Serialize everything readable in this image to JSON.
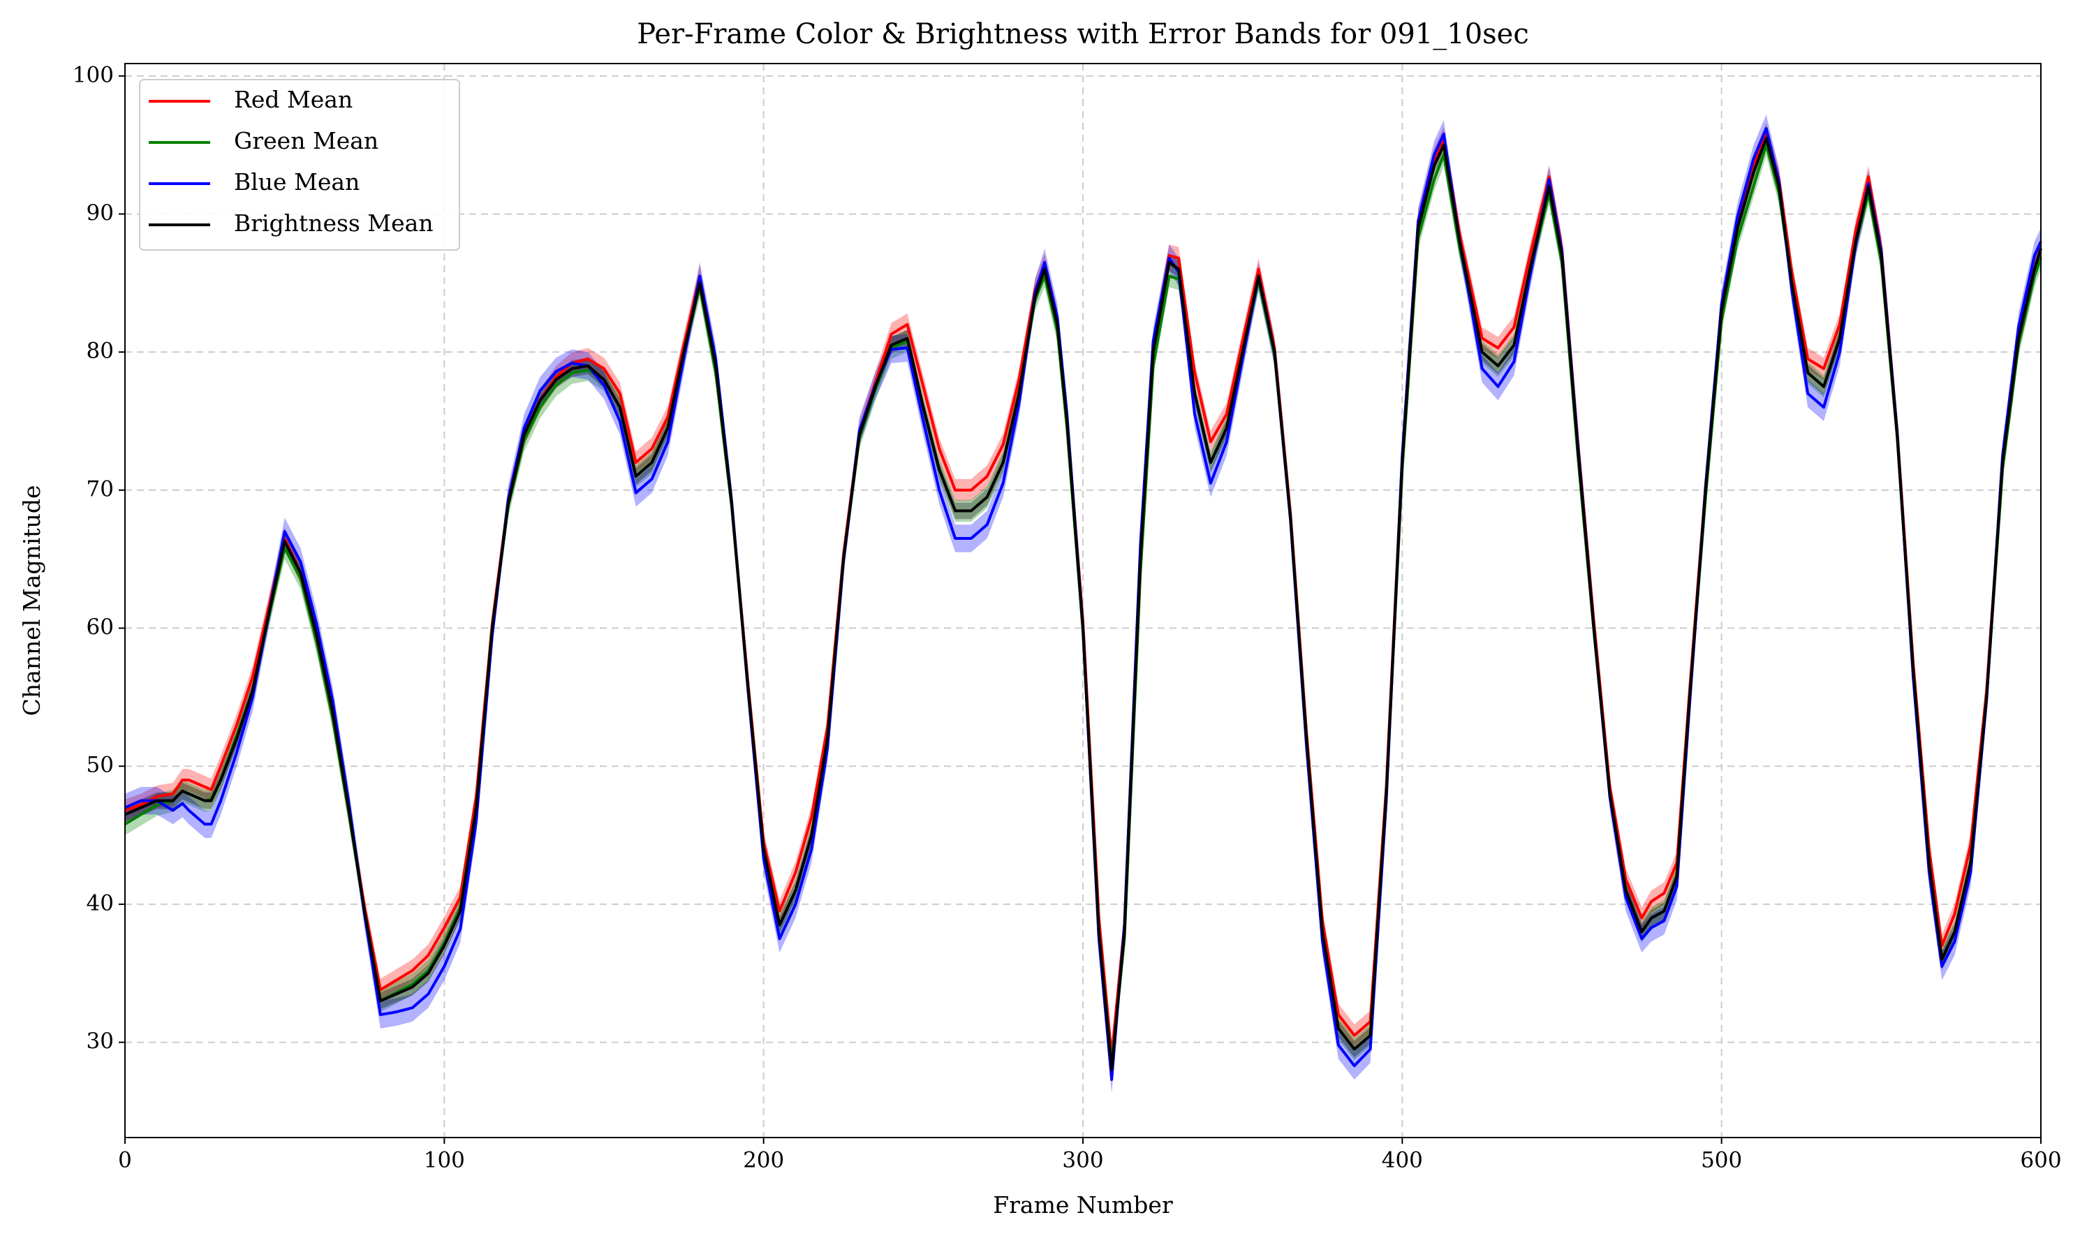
{
  "chart_data": {
    "type": "line",
    "title": "Per-Frame Color & Brightness with Error Bands for 091_10sec",
    "x_label": "Frame Number",
    "y_label": "Channel Magnitude",
    "x": [
      0,
      5,
      10,
      15,
      18,
      20,
      25,
      27,
      30,
      35,
      40,
      45,
      50,
      55,
      60,
      65,
      70,
      75,
      80,
      85,
      90,
      95,
      100,
      105,
      110,
      115,
      120,
      125,
      130,
      135,
      140,
      145,
      150,
      155,
      160,
      165,
      170,
      175,
      180,
      185,
      190,
      195,
      200,
      205,
      210,
      215,
      220,
      225,
      230,
      235,
      240,
      245,
      250,
      255,
      260,
      265,
      270,
      275,
      280,
      285,
      288,
      292,
      295,
      300,
      305,
      309,
      313,
      318,
      322,
      327,
      330,
      335,
      340,
      345,
      350,
      355,
      360,
      365,
      370,
      375,
      380,
      385,
      390,
      395,
      400,
      405,
      410,
      413,
      418,
      425,
      430,
      435,
      440,
      446,
      450,
      455,
      460,
      465,
      470,
      475,
      478,
      482,
      486,
      490,
      495,
      500,
      505,
      510,
      514,
      518,
      522,
      527,
      532,
      537,
      542,
      546,
      550,
      555,
      560,
      565,
      569,
      573,
      578,
      583,
      588,
      593,
      598,
      600
    ],
    "series": [
      {
        "name": "Red Mean",
        "color": "#ff0000",
        "error": 0.8,
        "values": [
          46.8,
          47.2,
          47.8,
          48,
          49,
          49,
          48.5,
          48.3,
          50,
          53,
          56.5,
          61.5,
          66.5,
          64,
          59.3,
          53.8,
          47,
          39.8,
          33.8,
          34.5,
          35.2,
          36.3,
          38.3,
          40.5,
          47.8,
          60.3,
          69.2,
          74,
          76.5,
          78.2,
          79.2,
          79.5,
          78.8,
          77,
          72,
          73,
          75.3,
          80.5,
          85.5,
          79,
          69,
          56.3,
          44.5,
          39.5,
          42.3,
          46.3,
          52.8,
          65.3,
          74.2,
          77.8,
          81.3,
          82,
          77.5,
          73,
          70,
          70,
          71,
          73.3,
          78,
          84.5,
          86.3,
          82.2,
          75.2,
          60.5,
          39,
          29,
          38.5,
          65.5,
          80.5,
          87,
          86.8,
          78.5,
          73.5,
          75.5,
          80.8,
          86,
          80.3,
          68.3,
          52.5,
          38.8,
          32,
          30.5,
          31.5,
          48.5,
          72.3,
          89.5,
          94,
          95.5,
          88.5,
          81,
          80.3,
          81.8,
          87,
          92.7,
          87.5,
          73.5,
          60.5,
          48.5,
          41.8,
          39,
          40.2,
          40.8,
          43,
          55.5,
          70.3,
          83.3,
          89.5,
          93.5,
          95.8,
          92.5,
          85.8,
          79.5,
          78.8,
          82,
          88.8,
          92.7,
          87.5,
          74.3,
          57.5,
          44,
          37,
          39.3,
          44.3,
          55.5,
          72,
          81,
          86,
          87.5
        ]
      },
      {
        "name": "Green Mean",
        "color": "#008000",
        "error": 0.8,
        "values": [
          45.8,
          46.5,
          47.2,
          47.5,
          48.2,
          48,
          47.5,
          47.6,
          49,
          52.2,
          55.5,
          60.8,
          65.8,
          63.6,
          59,
          53.5,
          46.7,
          39.5,
          33,
          33.6,
          34.2,
          35.2,
          37.2,
          39.7,
          47,
          60,
          68.8,
          73.6,
          76,
          77.6,
          78.5,
          78.7,
          78,
          76,
          71,
          72,
          74.5,
          80,
          84.7,
          78.5,
          68.8,
          56,
          44,
          38.5,
          41,
          45,
          52,
          65,
          73.8,
          77.3,
          80.3,
          80.8,
          76,
          71.5,
          68.5,
          68.5,
          69.5,
          72,
          77,
          83.8,
          85.5,
          81.5,
          74.5,
          59.8,
          38,
          28.3,
          37.5,
          64,
          79,
          85.5,
          85.3,
          77,
          72,
          74.5,
          80,
          85.2,
          79.8,
          68,
          52,
          38,
          31,
          29.5,
          30.5,
          48,
          71.5,
          88.3,
          92.5,
          94.3,
          87.5,
          80,
          79,
          80.5,
          85.8,
          91.5,
          86.5,
          72.5,
          59.8,
          48,
          41,
          38,
          39,
          39.5,
          42,
          55,
          69.5,
          82.3,
          88.2,
          92,
          95,
          91.5,
          85,
          78.5,
          77.5,
          81,
          87.8,
          91.5,
          86.5,
          73.8,
          57,
          43,
          36,
          38,
          43,
          55,
          71.5,
          80.5,
          85.5,
          86.8
        ]
      },
      {
        "name": "Blue Mean",
        "color": "#0000ff",
        "error": 1,
        "values": [
          47,
          47.5,
          47.5,
          46.8,
          47.3,
          46.8,
          45.8,
          45.8,
          47.5,
          51,
          55,
          61,
          67,
          64.8,
          60.3,
          54.8,
          47.5,
          39.3,
          32,
          32.2,
          32.5,
          33.5,
          35.5,
          38.2,
          46,
          59.5,
          69.3,
          74.5,
          77.2,
          78.6,
          79.2,
          79,
          77.6,
          75,
          69.8,
          70.8,
          73.5,
          79.5,
          85.5,
          79.5,
          69.2,
          55.8,
          43.3,
          37.5,
          40,
          44,
          51.3,
          64.8,
          74.3,
          77.6,
          80.2,
          80.3,
          75,
          70,
          66.5,
          66.5,
          67.5,
          70.5,
          76.3,
          84.3,
          86.5,
          82.5,
          75.5,
          60,
          37.5,
          27.3,
          38.5,
          66,
          80.8,
          86.8,
          85.8,
          75.5,
          70.5,
          73.5,
          79.5,
          85.5,
          80,
          67.8,
          51.5,
          37.3,
          29.8,
          28.3,
          29.5,
          47.5,
          72.5,
          89.5,
          94.3,
          95.8,
          88,
          78.8,
          77.5,
          79.3,
          85.5,
          92.5,
          87.3,
          73.3,
          60,
          47.8,
          40.5,
          37.5,
          38.3,
          38.8,
          41.3,
          54.5,
          70.3,
          83.5,
          89.8,
          94,
          96.2,
          92.3,
          84.5,
          77,
          76,
          80,
          87.8,
          92.2,
          87.3,
          74.2,
          56.5,
          42.3,
          35.5,
          37.3,
          42.3,
          54.8,
          72.5,
          81.8,
          87,
          88
        ]
      },
      {
        "name": "Brightness Mean",
        "color": "#000000",
        "error": 0.6,
        "values": [
          46.5,
          47,
          47.5,
          47.5,
          48.2,
          48,
          47.5,
          47.5,
          49,
          52,
          55.5,
          61,
          66.3,
          64,
          59.5,
          54,
          47,
          39.5,
          33,
          33.5,
          34,
          35,
          37,
          39.5,
          47,
          60,
          69,
          74,
          76.5,
          78,
          78.8,
          79,
          78,
          76,
          71,
          72,
          74.5,
          80,
          85,
          79,
          69,
          56,
          44,
          38.5,
          41,
          45,
          52,
          65,
          74,
          77.5,
          80.5,
          81,
          76,
          71.5,
          68.5,
          68.5,
          69.5,
          72,
          77,
          84,
          86,
          82,
          75,
          60,
          38,
          28,
          38,
          65,
          80,
          86.5,
          86,
          77,
          72,
          74.5,
          80,
          85.5,
          80,
          68,
          52,
          38,
          31,
          29.5,
          30.5,
          48,
          72,
          89,
          93.5,
          95,
          88,
          80,
          79,
          80.5,
          86,
          92,
          87,
          73,
          60,
          48,
          41,
          38,
          39,
          39.5,
          42,
          55,
          70,
          83,
          89,
          93,
          95.5,
          92,
          85,
          78.5,
          77.5,
          81,
          88,
          92,
          87,
          74,
          57,
          43,
          36,
          38,
          43,
          55,
          72,
          81,
          86,
          87.5
        ]
      }
    ],
    "xlim": [
      0,
      600
    ],
    "xticks": [
      0,
      100,
      200,
      300,
      400,
      500,
      600
    ],
    "ylim": [
      23.1,
      100.9
    ],
    "yticks": [
      30,
      40,
      50,
      60,
      70,
      80,
      90,
      100
    ],
    "grid": true,
    "legend": "upper left"
  }
}
